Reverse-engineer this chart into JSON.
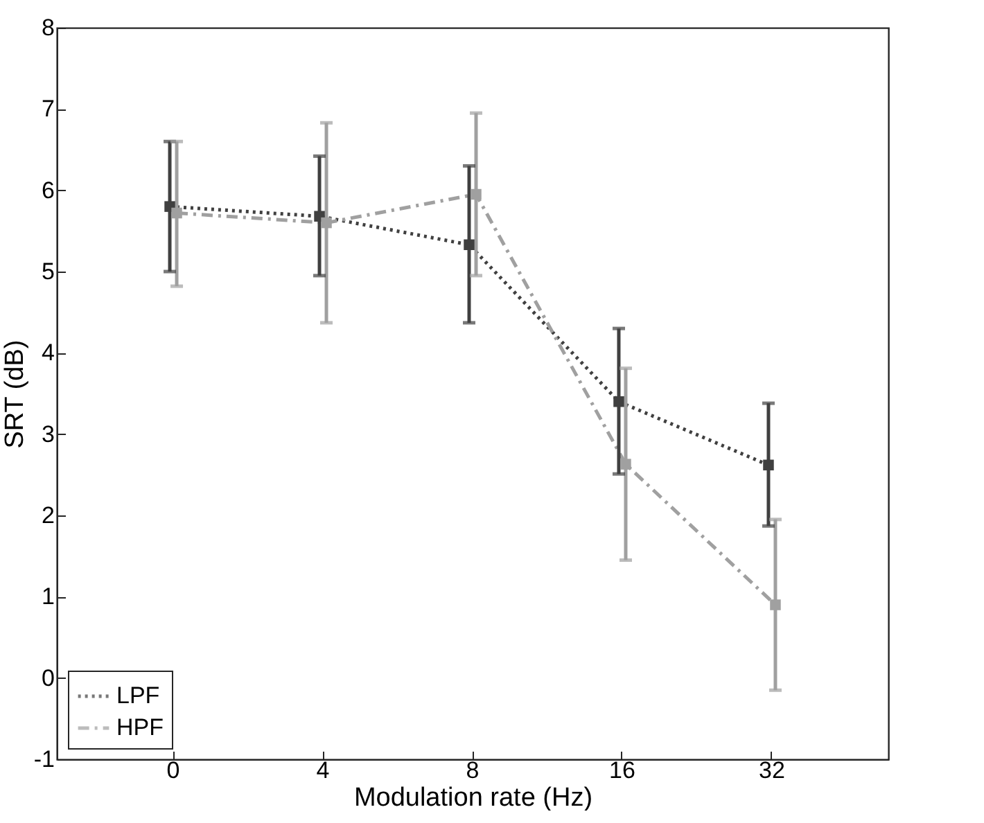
{
  "chart_data": {
    "type": "line",
    "xlabel": "Modulation rate (Hz)",
    "ylabel": "SRT (dB)",
    "categories": [
      "0",
      "4",
      "8",
      "16",
      "32"
    ],
    "ylim": [
      -1,
      8
    ],
    "yticks": [
      -1,
      0,
      1,
      2,
      3,
      4,
      5,
      6,
      7,
      8
    ],
    "grid": false,
    "legend": "bottom left",
    "marker": "square",
    "series": [
      {
        "name": "LPF",
        "color": "#404040",
        "line_style": "dotted",
        "values": [
          5.8,
          5.68,
          5.33,
          3.4,
          2.62
        ],
        "errors": [
          [
            5.0,
            6.6
          ],
          [
            4.95,
            6.42
          ],
          [
            4.37,
            6.3
          ],
          [
            2.51,
            4.3
          ],
          [
            1.87,
            3.38
          ]
        ]
      },
      {
        "name": "HPF",
        "color": "#a0a0a0",
        "line_style": "dashdot",
        "values": [
          5.72,
          5.6,
          5.95,
          2.63,
          0.9
        ],
        "errors": [
          [
            4.82,
            6.6
          ],
          [
            4.37,
            6.83
          ],
          [
            4.95,
            6.95
          ],
          [
            1.45,
            3.81
          ],
          [
            -0.15,
            1.95
          ]
        ]
      }
    ]
  }
}
